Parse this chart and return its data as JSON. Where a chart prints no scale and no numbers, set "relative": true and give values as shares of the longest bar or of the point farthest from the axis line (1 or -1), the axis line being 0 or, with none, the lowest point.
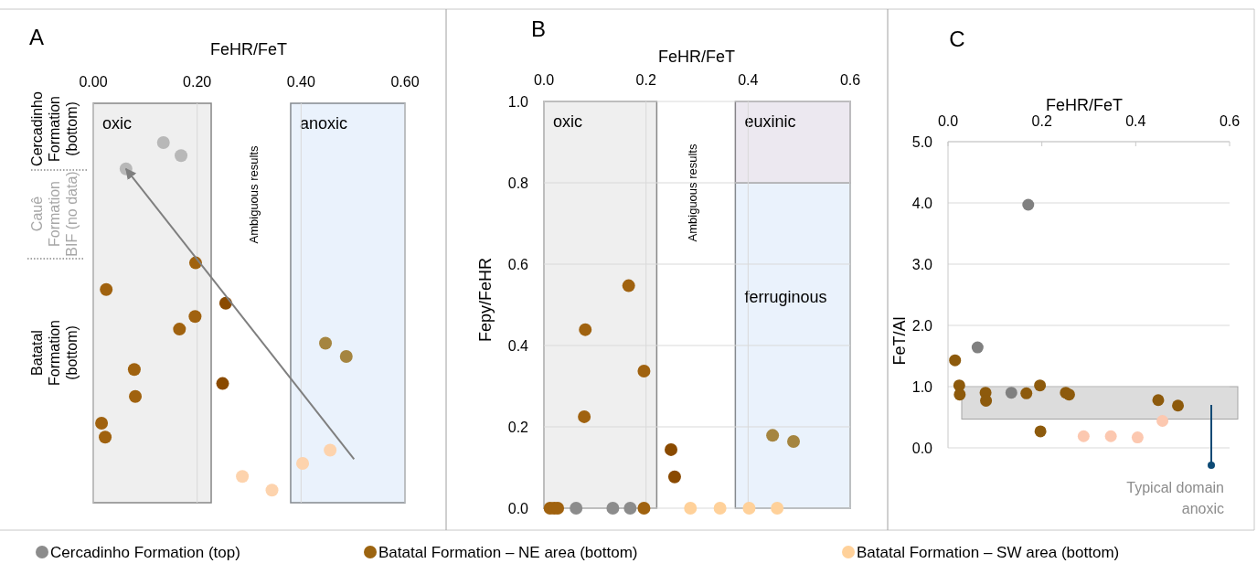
{
  "chart_data": [
    {
      "type": "scatter",
      "title": "A",
      "xlabel": "FeHR/FeT",
      "relative": true,
      "xlim": [
        0,
        0.6
      ],
      "xticks": [
        {
          "value": 0,
          "label": "0.00"
        },
        {
          "value": 0.2,
          "label": "0.20"
        },
        {
          "value": 0.4,
          "label": "0.40"
        },
        {
          "value": 0.6,
          "label": "0.60"
        }
      ],
      "grid": "x",
      "series": [
        {
          "color": "#b8b8b8",
          "x": [
            0.135,
            0.169,
            0.063
          ],
          "values": [
            1,
            0.964,
            0.927
          ]
        },
        {
          "colors": [
            "#a0620f",
            "#a0620f",
            "#8a4a00",
            "#a0620f",
            "#a0620f",
            "#a58540",
            "#a58540",
            "#a0620f",
            "#8a4a00",
            "#a0620f",
            "#a0620f",
            "#a0620f"
          ],
          "x": [
            0.197,
            0.025,
            0.255,
            0.196,
            0.166,
            0.447,
            0.487,
            0.079,
            0.249,
            0.081,
            0.016,
            0.023
          ],
          "values": [
            0.666,
            0.592,
            0.554,
            0.517,
            0.482,
            0.443,
            0.406,
            0.37,
            0.331,
            0.295,
            0.221,
            0.182
          ]
        },
        {
          "color": "#fdd3ad",
          "x": [
            0.456,
            0.403,
            0.287,
            0.344
          ],
          "values": [
            0.146,
            0.109,
            0.073,
            0.035
          ]
        },
        {
          "type": "line",
          "color": "#7f7f7f",
          "x": [
            0.502,
            0.063
          ],
          "values": [
            0.121,
            0.927
          ]
        }
      ],
      "bands": [
        {
          "axis": "x",
          "from": 0,
          "to": 0.227,
          "label": "oxic",
          "color": "#efefef"
        },
        {
          "axis": "x",
          "from": 0.38,
          "to": 0.6,
          "label": "anoxic",
          "color": "#eaf2fc"
        }
      ],
      "annotations": [
        "Ambiguous results",
        "Cercadinho\nFormation\n(bottom)",
        "Cauê\nFormation\nBIF (no data)",
        "Batatal\nFormation\n(bottom)"
      ]
    },
    {
      "type": "scatter",
      "title": "B",
      "xlabel": "FeHR/FeT",
      "ylabel": "Fepy/FeHR",
      "xlim": [
        0,
        0.6
      ],
      "xticks": [
        {
          "value": 0,
          "label": "0.0"
        },
        {
          "value": 0.2,
          "label": "0.2"
        },
        {
          "value": 0.4,
          "label": "0.4"
        },
        {
          "value": 0.6,
          "label": "0.6"
        }
      ],
      "ylim": [
        0,
        1
      ],
      "yticks": [
        {
          "value": 0,
          "label": "0.0"
        },
        {
          "value": 0.2,
          "label": "0.2"
        },
        {
          "value": 0.4,
          "label": "0.4"
        },
        {
          "value": 0.6,
          "label": "0.6"
        },
        {
          "value": 0.8,
          "label": "0.8"
        },
        {
          "value": 1,
          "label": "1.0"
        }
      ],
      "grid": true,
      "legend": "bottom",
      "series": [
        {
          "name": "Cercadinho Formation (top)",
          "color": "#8c8c8c",
          "x": [
            0.063,
            0.135,
            0.169
          ],
          "values": [
            0,
            0,
            0
          ]
        },
        {
          "name": "Batatal Formation – NE area (bottom)",
          "color": "#9c6410",
          "colors": [
            "#a0620f",
            "#a0620f",
            "#a0620f",
            "#a0620f",
            "#8a4a00",
            "#8a4a00",
            "#a58540",
            "#a58540",
            "#a0620f",
            "#a0620f",
            "#a0620f",
            "#a0620f"
          ],
          "x": [
            0.166,
            0.081,
            0.196,
            0.079,
            0.249,
            0.256,
            0.448,
            0.489,
            0.012,
            0.02,
            0.027,
            0.196
          ],
          "values": [
            0.547,
            0.439,
            0.337,
            0.225,
            0.144,
            0.077,
            0.179,
            0.164,
            0,
            0,
            0,
            0
          ]
        },
        {
          "name": "Batatal Formation – SW area (bottom)",
          "color": "#ffd19a",
          "x": [
            0.287,
            0.345,
            0.402,
            0.457
          ],
          "values": [
            0,
            0,
            0,
            0
          ]
        }
      ],
      "bands": [
        {
          "axis": "x",
          "from": 0,
          "to": 0.221,
          "label": "oxic",
          "color": "#efefef"
        },
        {
          "axis": "x",
          "from": 0.375,
          "to": 0.6,
          "label": "ferruginous",
          "color": "#eaf2fc"
        },
        {
          "axis": "y",
          "from": 0.8,
          "to": 1,
          "label": "euxinic",
          "color": "#ece8f0"
        }
      ],
      "annotations": [
        "Ambiguous results"
      ]
    },
    {
      "type": "scatter",
      "title": "C",
      "xlabel": "FeHR/FeT",
      "ylabel": "FeT/Al",
      "xlim": [
        0,
        0.6
      ],
      "xticks": [
        {
          "value": 0,
          "label": "0.0"
        },
        {
          "value": 0.2,
          "label": "0.2"
        },
        {
          "value": 0.4,
          "label": "0.4"
        },
        {
          "value": 0.6,
          "label": "0.6"
        }
      ],
      "ylim": [
        0,
        5
      ],
      "yticks": [
        {
          "value": 0,
          "label": "0.0"
        },
        {
          "value": 1,
          "label": "1.0"
        },
        {
          "value": 2,
          "label": "2.0"
        },
        {
          "value": 3,
          "label": "3.0"
        },
        {
          "value": 4,
          "label": "4.0"
        },
        {
          "value": 5,
          "label": "5.0"
        }
      ],
      "grid": "y",
      "series": [
        {
          "color": "#808080",
          "x": [
            0.171,
            0.063,
            0.135
          ],
          "values": [
            3.97,
            1.64,
            0.9
          ]
        },
        {
          "color": "#8d5a0c",
          "x": [
            0.015,
            0.024,
            0.025,
            0.08,
            0.081,
            0.167,
            0.196,
            0.197,
            0.251,
            0.258,
            0.448,
            0.49
          ],
          "values": [
            1.43,
            1.02,
            0.87,
            0.9,
            0.77,
            0.89,
            1.02,
            0.27,
            0.9,
            0.87,
            0.78,
            0.69
          ]
        },
        {
          "color": "#fcc8b0",
          "x": [
            0.457,
            0.289,
            0.347,
            0.404
          ],
          "values": [
            0.44,
            0.19,
            0.19,
            0.17
          ]
        }
      ],
      "bands": [
        {
          "axis": "y",
          "from": 0.47,
          "to": 1,
          "color": "#dcdcdc"
        }
      ],
      "annotations": [
        "Typical domain\nanoxic"
      ]
    }
  ]
}
